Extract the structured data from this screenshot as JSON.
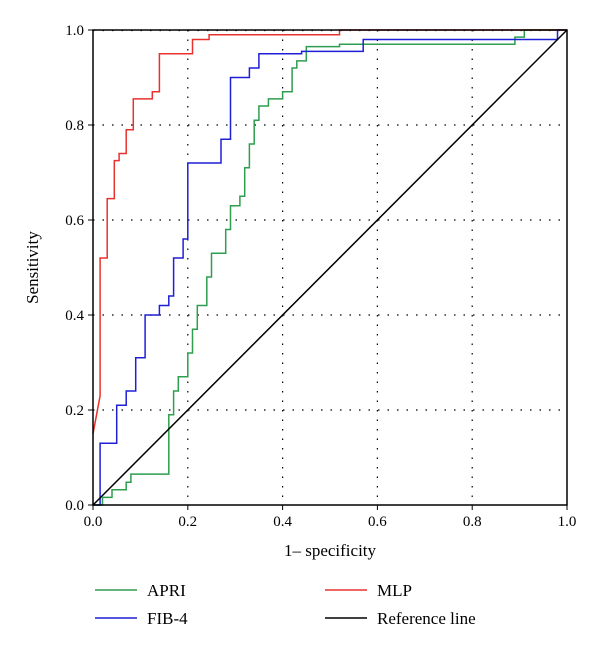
{
  "chart_data": {
    "type": "line",
    "xlabel": "1– specificity",
    "ylabel": "Sensitivity",
    "xlim": [
      0,
      1
    ],
    "ylim": [
      0,
      1
    ],
    "xticks": [
      "0.0",
      "0.2",
      "0.4",
      "0.6",
      "0.8",
      "1.0"
    ],
    "yticks": [
      "0.0",
      "0.2",
      "0.4",
      "0.6",
      "0.8",
      "1.0"
    ],
    "grid": "dotted",
    "legend_position": "bottom",
    "series": [
      {
        "name": "APRI",
        "color": "#2e9e4f",
        "x": [
          0,
          0.02,
          0.02,
          0.04,
          0.04,
          0.07,
          0.07,
          0.08,
          0.08,
          0.1,
          0.1,
          0.16,
          0.16,
          0.17,
          0.17,
          0.18,
          0.18,
          0.2,
          0.2,
          0.21,
          0.21,
          0.22,
          0.22,
          0.24,
          0.24,
          0.25,
          0.25,
          0.28,
          0.28,
          0.29,
          0.29,
          0.31,
          0.31,
          0.32,
          0.32,
          0.33,
          0.33,
          0.34,
          0.34,
          0.35,
          0.35,
          0.37,
          0.37,
          0.39,
          0.39,
          0.4,
          0.4,
          0.42,
          0.42,
          0.43,
          0.43,
          0.45,
          0.45,
          0.52,
          0.52,
          0.54,
          0.54,
          0.59,
          0.59,
          0.89,
          0.89,
          0.91,
          0.91,
          1.0
        ],
        "y": [
          0,
          0,
          0.016,
          0.016,
          0.032,
          0.032,
          0.048,
          0.048,
          0.065,
          0.065,
          0.065,
          0.065,
          0.19,
          0.19,
          0.24,
          0.24,
          0.27,
          0.27,
          0.32,
          0.32,
          0.37,
          0.37,
          0.42,
          0.42,
          0.48,
          0.48,
          0.53,
          0.53,
          0.58,
          0.58,
          0.63,
          0.63,
          0.65,
          0.65,
          0.71,
          0.71,
          0.76,
          0.76,
          0.81,
          0.81,
          0.84,
          0.84,
          0.855,
          0.855,
          0.855,
          0.855,
          0.87,
          0.87,
          0.92,
          0.92,
          0.935,
          0.935,
          0.965,
          0.965,
          0.97,
          0.97,
          0.97,
          0.97,
          0.97,
          0.97,
          0.985,
          0.985,
          1.0,
          1.0
        ]
      },
      {
        "name": "FIB-4",
        "color": "#1f1fd6",
        "x": [
          0,
          0.015,
          0.015,
          0.05,
          0.05,
          0.07,
          0.07,
          0.09,
          0.09,
          0.11,
          0.11,
          0.14,
          0.14,
          0.16,
          0.16,
          0.17,
          0.17,
          0.19,
          0.19,
          0.2,
          0.2,
          0.2,
          0.2,
          0.27,
          0.27,
          0.29,
          0.29,
          0.33,
          0.33,
          0.35,
          0.35,
          0.4,
          0.4,
          0.44,
          0.44,
          0.57,
          0.57,
          0.98,
          0.98,
          1.0
        ],
        "y": [
          0,
          0,
          0.13,
          0.13,
          0.21,
          0.21,
          0.24,
          0.24,
          0.31,
          0.31,
          0.4,
          0.4,
          0.42,
          0.42,
          0.44,
          0.44,
          0.52,
          0.52,
          0.56,
          0.56,
          0.72,
          0.72,
          0.72,
          0.72,
          0.77,
          0.77,
          0.9,
          0.9,
          0.92,
          0.92,
          0.95,
          0.95,
          0.95,
          0.95,
          0.955,
          0.955,
          0.98,
          0.98,
          1.0,
          1.0
        ]
      },
      {
        "name": "MLP",
        "color": "#e8322e",
        "x": [
          0,
          0.015,
          0.015,
          0.03,
          0.03,
          0.045,
          0.045,
          0.055,
          0.055,
          0.07,
          0.07,
          0.085,
          0.085,
          0.1,
          0.1,
          0.125,
          0.125,
          0.14,
          0.14,
          0.155,
          0.155,
          0.21,
          0.21,
          0.245,
          0.245,
          0.52,
          0.52,
          1.0
        ],
        "y": [
          0.15,
          0.23,
          0.52,
          0.52,
          0.645,
          0.645,
          0.725,
          0.725,
          0.74,
          0.74,
          0.79,
          0.79,
          0.855,
          0.855,
          0.855,
          0.855,
          0.87,
          0.87,
          0.95,
          0.95,
          0.95,
          0.95,
          0.98,
          0.98,
          0.99,
          0.99,
          1.0,
          1.0
        ]
      },
      {
        "name": "Reference line",
        "color": "#000000",
        "x": [
          0,
          1
        ],
        "y": [
          0,
          1
        ]
      }
    ]
  }
}
